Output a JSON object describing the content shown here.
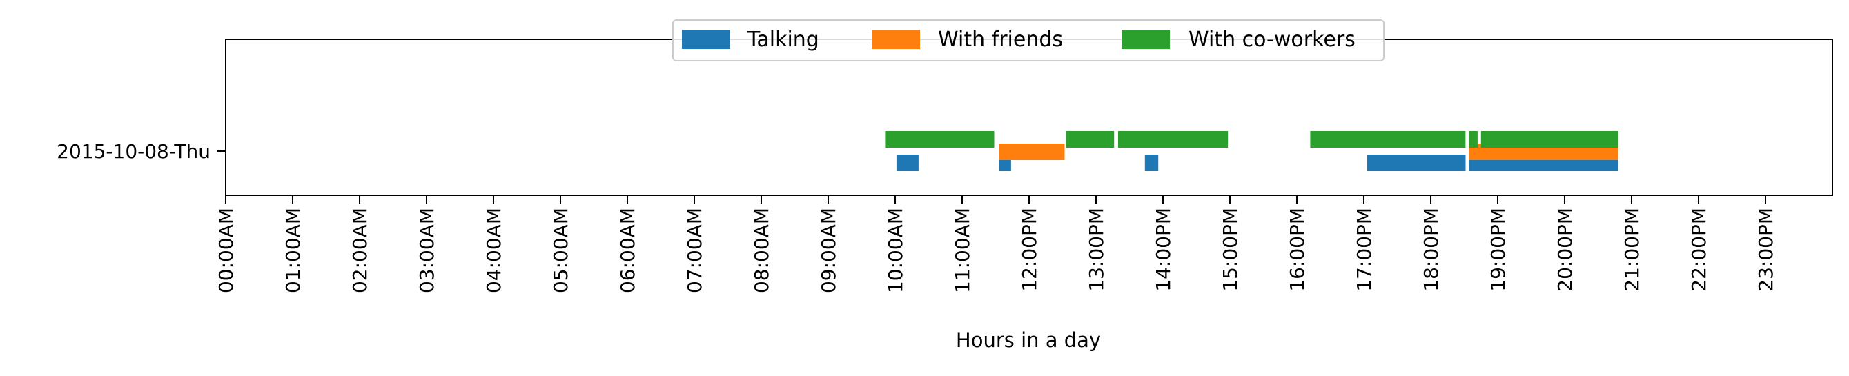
{
  "chart_data": {
    "type": "timeline",
    "title": "",
    "xlabel": "Hours in a day",
    "ylabel": "",
    "xlim": [
      0,
      24
    ],
    "x_unit": "hour of day",
    "legend_position": "top-center",
    "grid": false,
    "categories": [
      "2015-10-08-Thu"
    ],
    "tick_labels": [
      "00:00AM",
      "01:00AM",
      "02:00AM",
      "03:00AM",
      "04:00AM",
      "05:00AM",
      "06:00AM",
      "07:00AM",
      "08:00AM",
      "09:00AM",
      "10:00AM",
      "11:00AM",
      "12:00PM",
      "13:00PM",
      "14:00PM",
      "15:00PM",
      "16:00PM",
      "17:00PM",
      "18:00PM",
      "19:00PM",
      "20:00PM",
      "21:00PM",
      "22:00PM",
      "23:00PM"
    ],
    "series": [
      {
        "name": "Talking",
        "color": "#1f77b4",
        "intervals": [
          [
            10.02,
            10.35
          ],
          [
            11.55,
            11.73
          ],
          [
            13.73,
            13.93
          ],
          [
            17.05,
            18.52
          ],
          [
            18.57,
            20.8
          ]
        ]
      },
      {
        "name": "With friends",
        "color": "#ff7f0e",
        "intervals": [
          [
            11.55,
            12.53
          ],
          [
            18.57,
            20.8
          ]
        ]
      },
      {
        "name": "With co-workers",
        "color": "#2ca02c",
        "intervals": [
          [
            9.85,
            11.48
          ],
          [
            12.55,
            13.27
          ],
          [
            13.33,
            14.97
          ],
          [
            16.2,
            18.52
          ],
          [
            18.57,
            18.7
          ],
          [
            18.75,
            20.8
          ]
        ]
      }
    ]
  }
}
